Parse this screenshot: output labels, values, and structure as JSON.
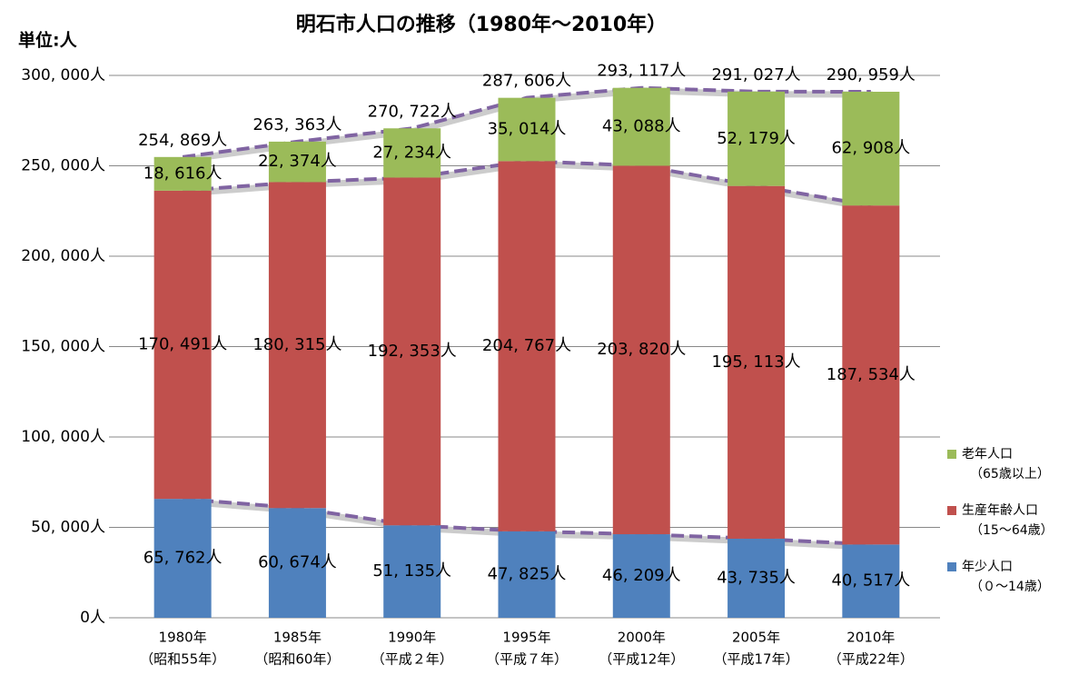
{
  "chart_data": {
    "type": "stacked_bar",
    "title": "明石市人口の推移（1980年～2010年）",
    "unit_label": "単位:人",
    "categories": [
      "1980年",
      "1985年",
      "1990年",
      "1995年",
      "2000年",
      "2005年",
      "2010年"
    ],
    "x_sublabels": [
      "（昭和55年）",
      "（昭和60年）",
      "（平成２年）",
      "（平成７年）",
      "（平成12年）",
      "（平成17年）",
      "（平成22年）"
    ],
    "series": [
      {
        "name": "年少人口",
        "note": "（０～14歳）",
        "color": "#4f81bd",
        "values": [
          65762,
          60674,
          51135,
          47825,
          46209,
          43735,
          40517
        ],
        "value_labels": [
          "65, 762人",
          "60, 674人",
          "51, 135人",
          "47, 825人",
          "46, 209人",
          "43, 735人",
          "40, 517人"
        ]
      },
      {
        "name": "生産年齢人口",
        "note": "（15～64歳）",
        "color": "#c0504d",
        "values": [
          170491,
          180315,
          192353,
          204767,
          203820,
          195113,
          187534
        ],
        "value_labels": [
          "170, 491人",
          "180, 315人",
          "192, 353人",
          "204, 767人",
          "203, 820人",
          "195, 113人",
          "187, 534人"
        ]
      },
      {
        "name": "老年人口",
        "note": "（65歳以上）",
        "color": "#9bbb59",
        "values": [
          18616,
          22374,
          27234,
          35014,
          43088,
          52179,
          62908
        ],
        "value_labels": [
          "18, 616人",
          "22, 374人",
          "27, 234人",
          "35, 014人",
          "43, 088人",
          "52, 179人",
          "62, 908人"
        ]
      }
    ],
    "totals": [
      254869,
      263363,
      270722,
      287606,
      293117,
      291027,
      290959
    ],
    "total_labels": [
      "254, 869人",
      "263, 363人",
      "270, 722人",
      "287, 606人",
      "293, 117人",
      "291, 027人",
      "290, 959人"
    ],
    "ylim": [
      0,
      300000
    ],
    "yticks": [
      {
        "value": 0,
        "label": "0人"
      },
      {
        "value": 50000,
        "label": "50, 000人"
      },
      {
        "value": 100000,
        "label": "100, 000人"
      },
      {
        "value": 150000,
        "label": "150, 000人"
      },
      {
        "value": 200000,
        "label": "200, 000人"
      },
      {
        "value": 250000,
        "label": "250, 000人"
      },
      {
        "value": 300000,
        "label": "300, 000人"
      }
    ],
    "grid": true,
    "trend_line_color": "#8064a2"
  }
}
